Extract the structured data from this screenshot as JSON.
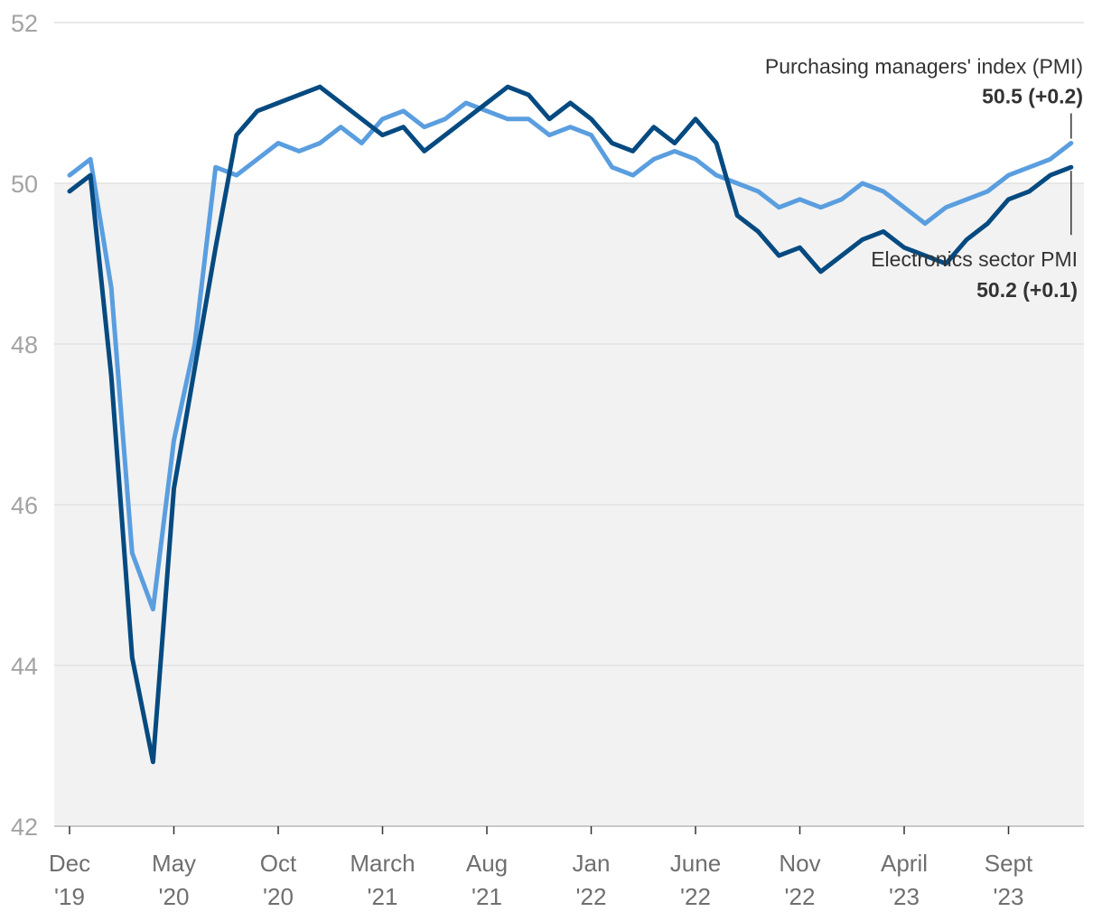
{
  "chart_data": {
    "type": "line",
    "title": "",
    "xlabel": "",
    "ylabel": "",
    "ylim": [
      42,
      52
    ],
    "yticks": [
      "42",
      "44",
      "46",
      "48",
      "50",
      "52"
    ],
    "grid": true,
    "shaded_below": 50,
    "x_tick_labels": [
      {
        "month": "Dec",
        "year": "'19"
      },
      {
        "month": "May",
        "year": "'20"
      },
      {
        "month": "Oct",
        "year": "'20"
      },
      {
        "month": "March",
        "year": "'21"
      },
      {
        "month": "Aug",
        "year": "'21"
      },
      {
        "month": "Jan",
        "year": "'22"
      },
      {
        "month": "June",
        "year": "'22"
      },
      {
        "month": "Nov",
        "year": "'22"
      },
      {
        "month": "April",
        "year": "'23"
      },
      {
        "month": "Sept",
        "year": "'23"
      }
    ],
    "x_start": "2019-12",
    "x_end": "2023-11",
    "series": [
      {
        "name": "Purchasing managers' index (PMI)",
        "annotation": "50.5 (+0.2)",
        "color": "#5a9edf",
        "values": [
          50.1,
          50.3,
          48.7,
          45.4,
          44.7,
          46.8,
          48.0,
          50.2,
          50.1,
          50.3,
          50.5,
          50.4,
          50.5,
          50.7,
          50.5,
          50.8,
          50.9,
          50.7,
          50.8,
          51.0,
          50.9,
          50.8,
          50.8,
          50.6,
          50.7,
          50.6,
          50.2,
          50.1,
          50.3,
          50.4,
          50.3,
          50.1,
          50.0,
          49.9,
          49.7,
          49.8,
          49.7,
          49.8,
          50.0,
          49.9,
          49.7,
          49.5,
          49.7,
          49.8,
          49.9,
          50.1,
          50.2,
          50.3,
          50.5
        ]
      },
      {
        "name": "Electronics sector PMI",
        "annotation": "50.2 (+0.1)",
        "color": "#054a80",
        "values": [
          49.9,
          50.1,
          47.6,
          44.1,
          42.8,
          46.2,
          47.7,
          49.2,
          50.6,
          50.9,
          51.0,
          51.1,
          51.2,
          51.0,
          50.8,
          50.6,
          50.7,
          50.4,
          50.6,
          50.8,
          51.0,
          51.2,
          51.1,
          50.8,
          51.0,
          50.8,
          50.5,
          50.4,
          50.7,
          50.5,
          50.8,
          50.5,
          49.6,
          49.4,
          49.1,
          49.2,
          48.9,
          49.1,
          49.3,
          49.4,
          49.2,
          49.1,
          49.0,
          49.3,
          49.5,
          49.8,
          49.9,
          50.1,
          50.2
        ]
      }
    ]
  }
}
